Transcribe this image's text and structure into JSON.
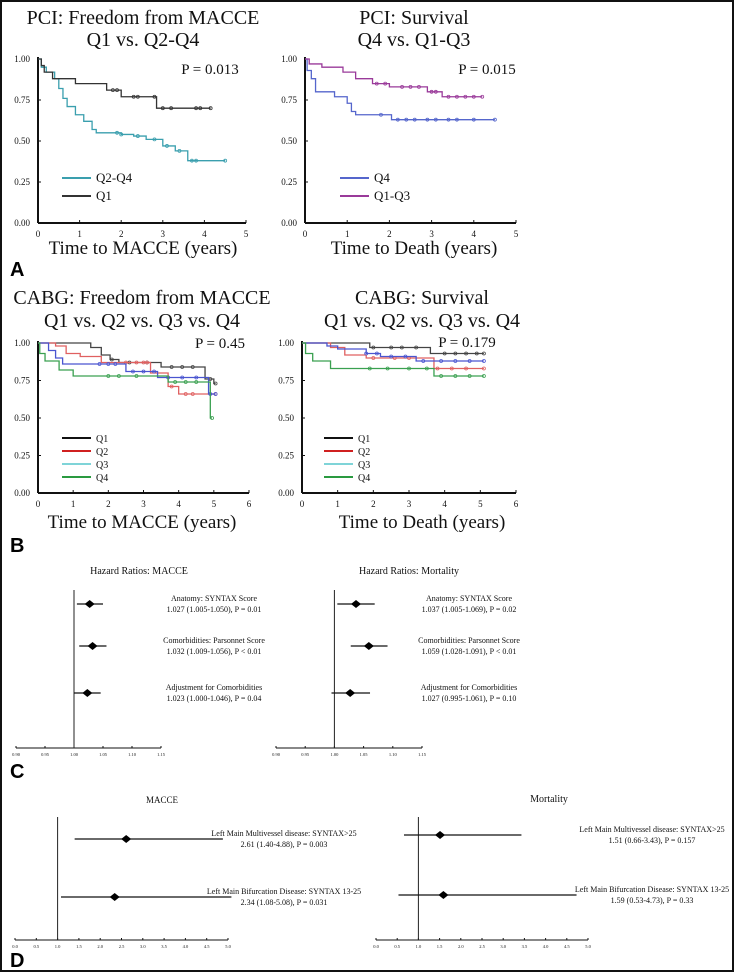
{
  "panel_letters": [
    "A",
    "B",
    "C",
    "D"
  ],
  "chart_data": [
    {
      "type": "line",
      "subtype": "kaplan-meier",
      "panel": "A",
      "title": [
        "PCI: Freedom from MACCE",
        "Q1 vs. Q2-Q4"
      ],
      "xlabel": "Time to MACCE (years)",
      "ylabel": "",
      "xlim": [
        0,
        5
      ],
      "ylim": [
        0,
        1
      ],
      "xticks": [
        "0",
        "1",
        "2",
        "3",
        "4",
        "5"
      ],
      "yticks": [
        "0.00",
        "0.25",
        "0.50",
        "0.75",
        "1.00"
      ],
      "annotation": "P = 0.013",
      "legend_placement": "center-left",
      "series": [
        {
          "name": "Q2-Q4",
          "color": "#3a9fae",
          "steps": [
            [
              0,
              1
            ],
            [
              0.08,
              0.95
            ],
            [
              0.2,
              0.92
            ],
            [
              0.4,
              0.88
            ],
            [
              0.5,
              0.82
            ],
            [
              0.6,
              0.76
            ],
            [
              0.7,
              0.71
            ],
            [
              0.9,
              0.66
            ],
            [
              1.1,
              0.62
            ],
            [
              1.3,
              0.57
            ],
            [
              1.4,
              0.55
            ],
            [
              2.0,
              0.54
            ],
            [
              2.3,
              0.53
            ],
            [
              2.6,
              0.51
            ],
            [
              3.0,
              0.47
            ],
            [
              3.3,
              0.44
            ],
            [
              3.6,
              0.38
            ]
          ],
          "end": 4.5,
          "censored": [
            1.9,
            2.0,
            2.4,
            2.8,
            3.1,
            3.4,
            3.7,
            3.8,
            4.5
          ]
        },
        {
          "name": "Q1",
          "color": "#333333",
          "steps": [
            [
              0,
              1
            ],
            [
              0.08,
              0.96
            ],
            [
              0.15,
              0.92
            ],
            [
              0.35,
              0.88
            ],
            [
              0.9,
              0.85
            ],
            [
              1.65,
              0.81
            ],
            [
              2.0,
              0.77
            ],
            [
              2.85,
              0.7
            ]
          ],
          "end": 4.15,
          "censored": [
            1.8,
            1.9,
            2.3,
            2.4,
            2.8,
            3.0,
            3.2,
            3.8,
            3.9,
            4.15
          ]
        }
      ]
    },
    {
      "type": "line",
      "subtype": "kaplan-meier",
      "panel": "A",
      "title": [
        "PCI: Survival",
        "Q4 vs. Q1-Q3"
      ],
      "xlabel": "Time to Death (years)",
      "ylabel": "",
      "xlim": [
        0,
        5
      ],
      "ylim": [
        0,
        1
      ],
      "xticks": [
        "0",
        "1",
        "2",
        "3",
        "4",
        "5"
      ],
      "yticks": [
        "0.00",
        "0.25",
        "0.50",
        "0.75",
        "1.00"
      ],
      "annotation": "P = 0.015",
      "legend_placement": "center-left",
      "series": [
        {
          "name": "Q4",
          "color": "#5566cc",
          "steps": [
            [
              0,
              1
            ],
            [
              0.05,
              0.93
            ],
            [
              0.15,
              0.88
            ],
            [
              0.25,
              0.8
            ],
            [
              0.7,
              0.77
            ],
            [
              1.0,
              0.73
            ],
            [
              1.1,
              0.68
            ],
            [
              1.2,
              0.66
            ],
            [
              2.05,
              0.63
            ]
          ],
          "end": 4.5,
          "censored": [
            1.8,
            2.2,
            2.4,
            2.6,
            2.9,
            3.1,
            3.4,
            3.6,
            4.0,
            4.5
          ]
        },
        {
          "name": "Q1-Q3",
          "color": "#9a3a9a",
          "steps": [
            [
              0,
              1
            ],
            [
              0.1,
              0.97
            ],
            [
              0.4,
              0.95
            ],
            [
              0.9,
              0.92
            ],
            [
              1.2,
              0.88
            ],
            [
              1.6,
              0.85
            ],
            [
              2.0,
              0.83
            ],
            [
              2.9,
              0.8
            ],
            [
              3.25,
              0.77
            ]
          ],
          "end": 4.2,
          "censored": [
            1.7,
            1.9,
            2.3,
            2.5,
            2.7,
            3.0,
            3.1,
            3.4,
            3.6,
            3.8,
            4.0,
            4.2
          ]
        }
      ]
    },
    {
      "type": "line",
      "subtype": "kaplan-meier",
      "panel": "B",
      "title": [
        "CABG: Freedom from MACCE",
        "Q1 vs. Q2 vs. Q3 vs. Q4"
      ],
      "xlabel": "Time to MACCE (years)",
      "ylabel": "",
      "xlim": [
        0,
        6
      ],
      "ylim": [
        0,
        1
      ],
      "xticks": [
        "0",
        "1",
        "2",
        "3",
        "4",
        "5",
        "6"
      ],
      "yticks": [
        "0.00",
        "0.25",
        "0.50",
        "0.75",
        "1.00"
      ],
      "annotation": "P = 0.45",
      "legend_placement": "lower-left",
      "series": [
        {
          "name": "Q1",
          "color": "#444444",
          "legend_color": "#111111",
          "steps": [
            [
              0,
              1
            ],
            [
              1.5,
              0.97
            ],
            [
              1.8,
              0.92
            ],
            [
              2.05,
              0.89
            ],
            [
              2.3,
              0.87
            ],
            [
              3.5,
              0.84
            ],
            [
              4.75,
              0.76
            ],
            [
              5.0,
              0.73
            ]
          ],
          "end": 5.05,
          "censored": [
            2.1,
            2.6,
            3.1,
            3.8,
            4.1,
            4.4,
            4.9,
            5.05
          ]
        },
        {
          "name": "Q2",
          "color": "#e06060",
          "legend_color": "#d02020",
          "steps": [
            [
              0,
              1
            ],
            [
              0.5,
              0.98
            ],
            [
              0.8,
              0.93
            ],
            [
              1.2,
              0.91
            ],
            [
              1.8,
              0.87
            ],
            [
              3.2,
              0.8
            ],
            [
              3.7,
              0.71
            ],
            [
              4.0,
              0.66
            ]
          ],
          "end": 5.05,
          "censored": [
            2.5,
            2.8,
            3.0,
            3.1,
            3.8,
            4.2,
            4.4,
            5.05
          ]
        },
        {
          "name": "Q3",
          "color": "#4a55d0",
          "legend_color": "#7fd4d8",
          "steps": [
            [
              0,
              1
            ],
            [
              0.3,
              0.95
            ],
            [
              0.5,
              0.9
            ],
            [
              0.7,
              0.86
            ],
            [
              2.5,
              0.81
            ],
            [
              3.4,
              0.77
            ],
            [
              4.85,
              0.66
            ]
          ],
          "end": 5.05,
          "censored": [
            1.75,
            2.0,
            2.2,
            2.7,
            3.0,
            3.3,
            3.7,
            4.1,
            4.5,
            4.9,
            5.05
          ]
        },
        {
          "name": "Q4",
          "color": "#3aa050",
          "legend_color": "#2a9a40",
          "steps": [
            [
              0,
              1
            ],
            [
              0.05,
              0.93
            ],
            [
              0.2,
              0.88
            ],
            [
              0.6,
              0.82
            ],
            [
              1.0,
              0.78
            ],
            [
              3.7,
              0.74
            ],
            [
              4.9,
              0.5
            ]
          ],
          "end": 4.95,
          "censored": [
            2.0,
            2.3,
            2.8,
            3.9,
            4.2,
            4.5,
            4.95
          ]
        }
      ]
    },
    {
      "type": "line",
      "subtype": "kaplan-meier",
      "panel": "B",
      "title": [
        "CABG: Survival",
        "Q1 vs. Q2 vs. Q3 vs. Q4"
      ],
      "xlabel": "Time to Death (years)",
      "ylabel": "",
      "xlim": [
        0,
        6
      ],
      "ylim": [
        0,
        1
      ],
      "xticks": [
        "0",
        "1",
        "2",
        "3",
        "4",
        "5",
        "6"
      ],
      "yticks": [
        "0.00",
        "0.25",
        "0.50",
        "0.75",
        "1.00"
      ],
      "annotation": "P = 0.179",
      "legend_placement": "lower-left",
      "series": [
        {
          "name": "Q1",
          "color": "#444444",
          "legend_color": "#111111",
          "steps": [
            [
              0,
              1
            ],
            [
              1.9,
              0.97
            ],
            [
              3.6,
              0.93
            ]
          ],
          "end": 5.1,
          "censored": [
            2.0,
            2.5,
            2.8,
            3.2,
            4.0,
            4.3,
            4.6,
            4.9,
            5.1
          ]
        },
        {
          "name": "Q2",
          "color": "#e06060",
          "legend_color": "#d02020",
          "steps": [
            [
              0,
              1
            ],
            [
              0.8,
              0.97
            ],
            [
              1.2,
              0.92
            ],
            [
              1.8,
              0.9
            ],
            [
              3.7,
              0.83
            ]
          ],
          "end": 5.1,
          "censored": [
            2.0,
            2.6,
            3.0,
            3.8,
            4.2,
            4.6,
            5.1
          ]
        },
        {
          "name": "Q3",
          "color": "#4a55d0",
          "legend_color": "#7fd4d8",
          "steps": [
            [
              0,
              1
            ],
            [
              0.7,
              0.98
            ],
            [
              1.0,
              0.96
            ],
            [
              1.8,
              0.93
            ],
            [
              2.2,
              0.91
            ],
            [
              3.2,
              0.88
            ]
          ],
          "end": 5.1,
          "censored": [
            1.8,
            2.1,
            2.5,
            2.9,
            3.4,
            3.9,
            4.3,
            4.7,
            5.1
          ]
        },
        {
          "name": "Q4",
          "color": "#3aa050",
          "legend_color": "#2a9a40",
          "steps": [
            [
              0,
              1
            ],
            [
              0.1,
              0.93
            ],
            [
              0.3,
              0.88
            ],
            [
              0.8,
              0.83
            ],
            [
              3.7,
              0.78
            ]
          ],
          "end": 5.1,
          "censored": [
            1.9,
            2.4,
            3.0,
            3.5,
            3.9,
            4.3,
            4.7,
            5.1
          ]
        }
      ]
    },
    {
      "type": "forest",
      "panel": "C",
      "title": "Hazard Ratios: MACCE",
      "xlim": [
        0.9,
        1.15
      ],
      "reference": 1.0,
      "xticks": [
        "0.90",
        "0.95",
        "1.00",
        "1.05",
        "1.10",
        "1.15"
      ],
      "rows": [
        {
          "label": "Anatomy: SYNTAX Score",
          "text": "1.027 (1.005-1.050), P = 0.01",
          "hr": 1.027,
          "ci": [
            1.005,
            1.05
          ]
        },
        {
          "label": "Comorbidities: Parsonnet Score",
          "text": "1.032 (1.009-1.056), P < 0.01",
          "hr": 1.032,
          "ci": [
            1.009,
            1.056
          ]
        },
        {
          "label": "Adjustment for Comorbidities",
          "text": "1.023 (1.000-1.046), P = 0.04",
          "hr": 1.023,
          "ci": [
            1.0,
            1.046
          ]
        }
      ]
    },
    {
      "type": "forest",
      "panel": "C",
      "title": "Hazard Ratios: Mortality",
      "xlim": [
        0.9,
        1.15
      ],
      "reference": 1.0,
      "xticks": [
        "0.90",
        "0.95",
        "1.00",
        "1.05",
        "1.10",
        "1.15"
      ],
      "rows": [
        {
          "label": "Anatomy: SYNTAX Score",
          "text": "1.037 (1.005-1.069), P = 0.02",
          "hr": 1.037,
          "ci": [
            1.005,
            1.069
          ]
        },
        {
          "label": "Comorbidities: Parsonnet Score",
          "text": "1.059 (1.028-1.091), P < 0.01",
          "hr": 1.059,
          "ci": [
            1.028,
            1.091
          ]
        },
        {
          "label": "Adjustment for Comorbidities",
          "text": "1.027 (0.995-1.061), P = 0.10",
          "hr": 1.027,
          "ci": [
            0.995,
            1.061
          ]
        }
      ]
    },
    {
      "type": "forest",
      "panel": "D",
      "title": "MACCE",
      "xlim": [
        0.0,
        5.0
      ],
      "reference": 1.0,
      "xticks": [
        "0.0",
        "0.5",
        "1.0",
        "1.5",
        "2.0",
        "2.5",
        "3.0",
        "3.5",
        "4.0",
        "4.5",
        "5.0"
      ],
      "rows": [
        {
          "label": "Left Main Multivessel disease: SYNTAX>25",
          "text": "2.61 (1.40-4.88), P = 0.003",
          "hr": 2.61,
          "ci": [
            1.4,
            4.88
          ]
        },
        {
          "label": "Left Main Bifurcation Disease: SYNTAX 13-25",
          "text": "2.34 (1.08-5.08), P = 0.031",
          "hr": 2.34,
          "ci": [
            1.08,
            5.08
          ]
        }
      ]
    },
    {
      "type": "forest",
      "panel": "D",
      "title": "Mortality",
      "xlim": [
        0.0,
        5.0
      ],
      "reference": 1.0,
      "xticks": [
        "0.0",
        "0.5",
        "1.0",
        "1.5",
        "2.0",
        "2.5",
        "3.0",
        "3.5",
        "4.0",
        "4.5",
        "5.0"
      ],
      "rows": [
        {
          "label": "Left Main Multivessel disease: SYNTAX>25",
          "text": "1.51 (0.66-3.43), P = 0.157",
          "hr": 1.51,
          "ci": [
            0.66,
            3.43
          ]
        },
        {
          "label": "Left Main Bifurcation Disease: SYNTAX 13-25",
          "text": "1.59 (0.53-4.73), P = 0.33",
          "hr": 1.59,
          "ci": [
            0.53,
            4.73
          ]
        }
      ]
    }
  ]
}
